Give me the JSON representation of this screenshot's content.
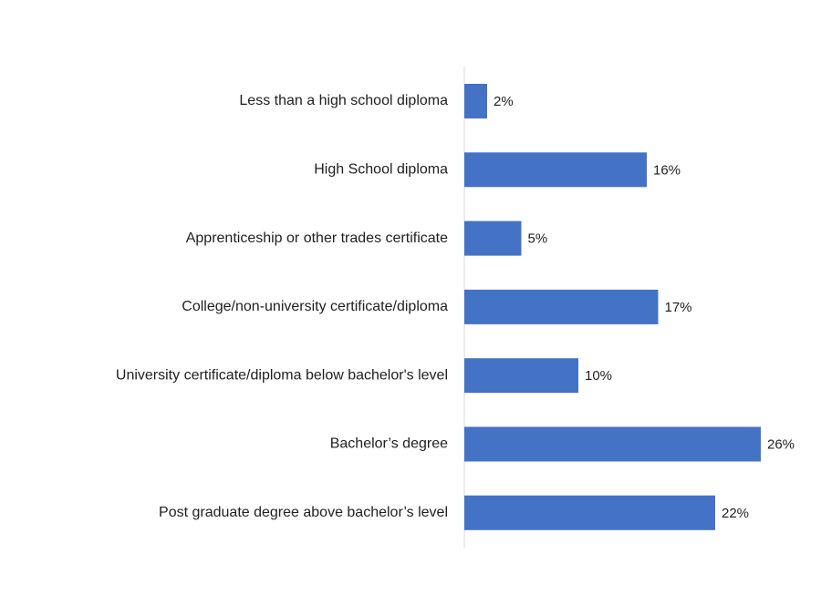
{
  "chart_data": {
    "type": "bar",
    "orientation": "horizontal",
    "categories": [
      "Less than a high school diploma",
      "High School diploma",
      "Apprenticeship or other trades certificate",
      "College/non-university certificate/diploma",
      "University certificate/diploma below bachelor's level",
      "Bachelor’s degree",
      "Post graduate degree above bachelor’s level"
    ],
    "values": [
      2,
      16,
      5,
      17,
      10,
      26,
      22
    ],
    "value_labels": [
      "2%",
      "16%",
      "5%",
      "17%",
      "10%",
      "26%",
      "22%"
    ],
    "xlim": [
      0,
      26
    ],
    "grid": false,
    "legend": "none",
    "colors": {
      "bar": "#4472C4",
      "axis": "#d9d9d9",
      "text": "#1f1f1f"
    }
  }
}
